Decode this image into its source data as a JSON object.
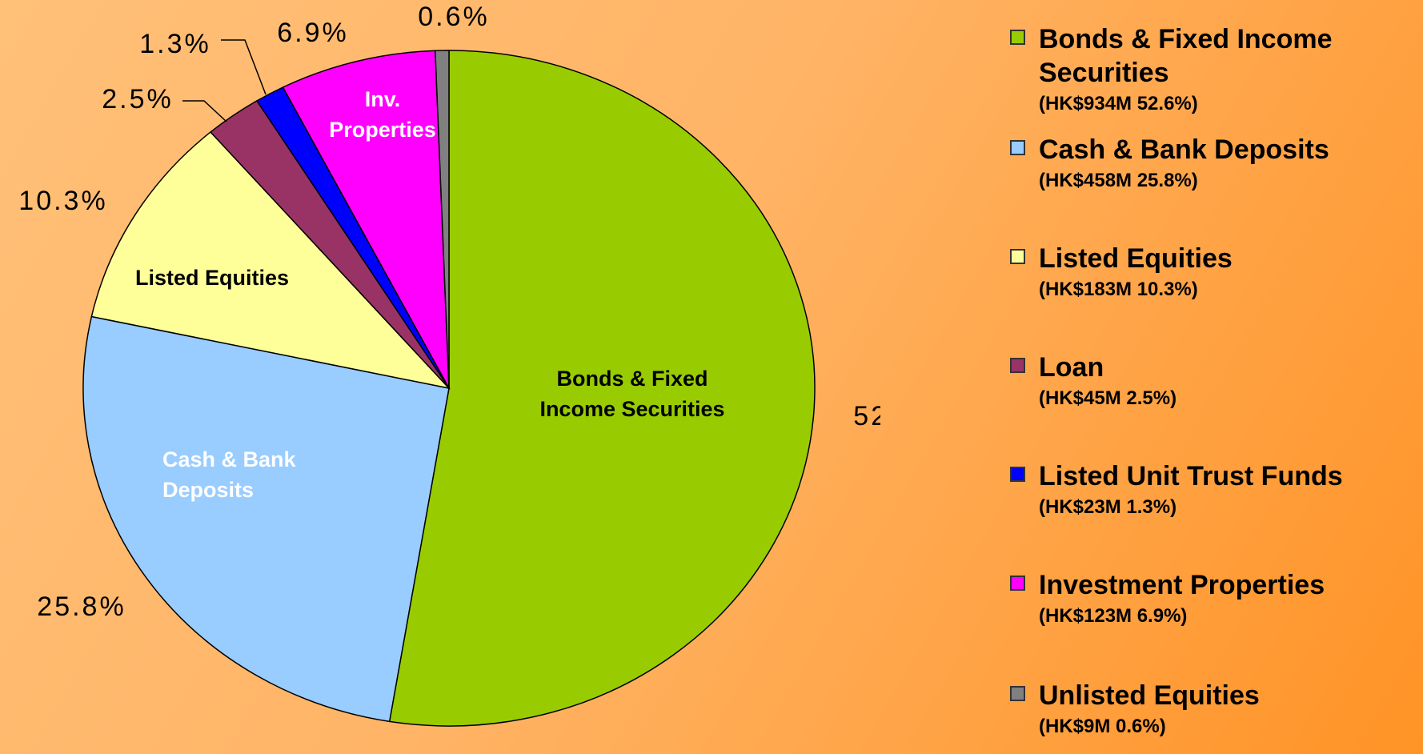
{
  "chart_data": {
    "type": "pie",
    "categories": [
      "Bonds & Fixed Income Securities",
      "Cash & Bank Deposits",
      "Listed Equities",
      "Loan",
      "Listed Unit Trust Funds",
      "Investment Properties",
      "Unlisted Equities"
    ],
    "values": [
      52.6,
      25.8,
      10.3,
      2.5,
      1.3,
      6.9,
      0.6
    ],
    "value_labels": [
      "52.6%",
      "25.8%",
      "10.3%",
      "2.5%",
      "1.3%",
      "6.9%",
      "0.6%"
    ],
    "colors": [
      "#99cc00",
      "#99ccff",
      "#ffff99",
      "#993366",
      "#0000ff",
      "#ff00ff",
      "#808080"
    ],
    "slice_labels": [
      [
        "Bonds & Fixed",
        "Income Securities"
      ],
      [
        "Cash & Bank",
        "Deposits"
      ],
      [
        "Listed Equities"
      ],
      null,
      null,
      [
        "Inv.",
        "Properties"
      ],
      null
    ],
    "slice_label_colors": [
      "#000000",
      "#ffffff",
      "#000000",
      null,
      null,
      "#ffffff",
      null
    ],
    "legend_details": [
      "(HK$934M 52.6%)",
      "(HK$458M 25.8%)",
      "(HK$183M 10.3%)",
      "(HK$45M 2.5%)",
      "(HK$23M 1.3%)",
      "(HK$123M 6.9%)",
      "(HK$9M 0.6%)"
    ],
    "legend": "right"
  }
}
